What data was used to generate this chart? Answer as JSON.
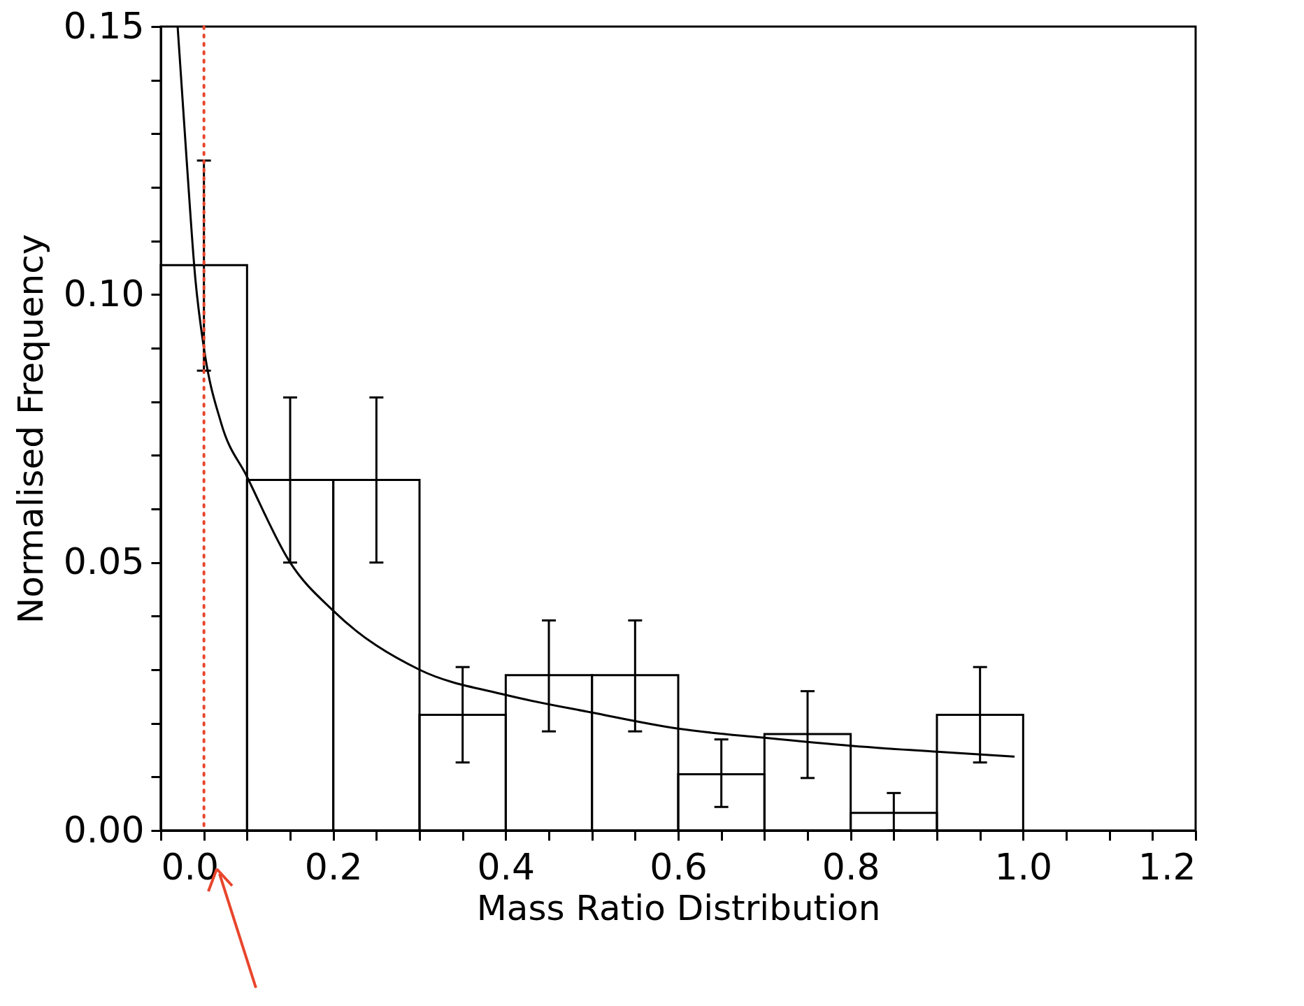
{
  "chart_data": {
    "type": "histogram",
    "xlabel": "Mass Ratio Distribution",
    "ylabel": "Normalised Frequency",
    "color": "#000000",
    "bins": [
      0.0,
      0.1,
      0.2,
      0.3,
      0.4,
      0.5,
      0.6,
      0.7,
      0.8,
      0.9,
      1.0
    ],
    "values": [
      0.1055,
      0.0654,
      0.0654,
      0.0216,
      0.029,
      0.029,
      0.0105,
      0.018,
      0.0033,
      0.0216
    ],
    "errors": [
      [
        0.0858,
        0.125
      ],
      [
        0.05,
        0.0808
      ],
      [
        0.05,
        0.0808
      ],
      [
        0.0127,
        0.0305
      ],
      [
        0.0185,
        0.0392
      ],
      [
        0.0185,
        0.0392
      ],
      [
        0.0044,
        0.017
      ],
      [
        0.0098,
        0.026
      ],
      [
        0.0,
        0.007
      ],
      [
        0.0127,
        0.0305
      ]
    ],
    "series": [
      {
        "type": "line",
        "color": "#000000",
        "x": [
          0.0195,
          0.03,
          0.04,
          0.05,
          0.07,
          0.1,
          0.15,
          0.2,
          0.3,
          0.4,
          0.5,
          0.6,
          0.7,
          0.8,
          0.9,
          0.99
        ],
        "values": [
          0.15,
          0.125,
          0.103,
          0.09,
          0.076,
          0.066,
          0.05,
          0.041,
          0.03,
          0.0253,
          0.022,
          0.019,
          0.0173,
          0.0158,
          0.0147,
          0.0138
        ]
      }
    ],
    "ref_lines": [
      {
        "axis": "x",
        "value": 0.05,
        "color": "#e8452c",
        "line_style": "dotted"
      }
    ],
    "xlim": [
      0,
      1.2
    ],
    "ylim": [
      0,
      0.15
    ],
    "xticks": [
      {
        "value": 0,
        "label": "0.0"
      },
      {
        "value": 0.05,
        "label": null
      },
      {
        "value": 0.1,
        "label": null
      },
      {
        "value": 0.15,
        "label": null
      },
      {
        "value": 0.2,
        "label": "0.2"
      },
      {
        "value": 0.25,
        "label": null
      },
      {
        "value": 0.3,
        "label": null
      },
      {
        "value": 0.35,
        "label": null
      },
      {
        "value": 0.4,
        "label": "0.4"
      },
      {
        "value": 0.45,
        "label": null
      },
      {
        "value": 0.5,
        "label": null
      },
      {
        "value": 0.55,
        "label": null
      },
      {
        "value": 0.6,
        "label": "0.6"
      },
      {
        "value": 0.65,
        "label": null
      },
      {
        "value": 0.7,
        "label": null
      },
      {
        "value": 0.75,
        "label": null
      },
      {
        "value": 0.8,
        "label": "0.8"
      },
      {
        "value": 0.85,
        "label": null
      },
      {
        "value": 0.9,
        "label": null
      },
      {
        "value": 0.95,
        "label": null
      },
      {
        "value": 1.0,
        "label": "1.0"
      },
      {
        "value": 1.05,
        "label": null
      },
      {
        "value": 1.1,
        "label": null
      },
      {
        "value": 1.15,
        "label": null
      },
      {
        "value": 1.2,
        "label": "1.2"
      }
    ],
    "yticks": [
      {
        "value": 0,
        "label": "0.00"
      },
      {
        "value": 0.01,
        "label": null
      },
      {
        "value": 0.02,
        "label": null
      },
      {
        "value": 0.03,
        "label": null
      },
      {
        "value": 0.04,
        "label": null
      },
      {
        "value": 0.05,
        "label": "0.05"
      },
      {
        "value": 0.06,
        "label": null
      },
      {
        "value": 0.07,
        "label": null
      },
      {
        "value": 0.08,
        "label": null
      },
      {
        "value": 0.09,
        "label": null
      },
      {
        "value": 0.1,
        "label": "0.10"
      },
      {
        "value": 0.11,
        "label": null
      },
      {
        "value": 0.12,
        "label": null
      },
      {
        "value": 0.13,
        "label": null
      },
      {
        "value": 0.14,
        "label": null
      },
      {
        "value": 0.15,
        "label": "0.15"
      }
    ],
    "grid": false
  }
}
